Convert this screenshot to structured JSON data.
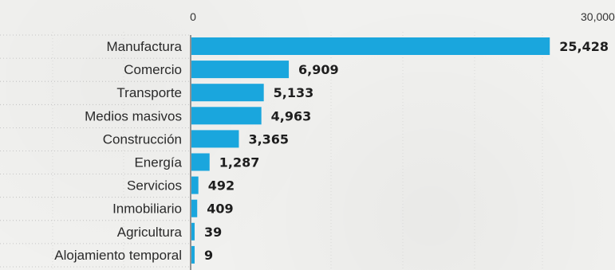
{
  "chart_data": {
    "type": "bar",
    "orientation": "horizontal",
    "title": "",
    "xlabel": "",
    "ylabel": "",
    "xlim": [
      0,
      30000
    ],
    "x_ticks": [
      {
        "value": 0,
        "label": "0"
      },
      {
        "value": 30000,
        "label": "30,000"
      }
    ],
    "categories": [
      "Manufactura",
      "Comercio",
      "Transporte",
      "Medios masivos",
      "Construcción",
      "Energía",
      "Servicios",
      "Inmobiliario",
      "Agricultura",
      "Alojamiento temporal"
    ],
    "values": [
      25428,
      6909,
      5133,
      4963,
      3365,
      1287,
      492,
      409,
      39,
      9
    ],
    "value_labels": [
      "25,428",
      "6,909",
      "5,133",
      "4,963",
      "3,365",
      "1,287",
      "492",
      "409",
      "39",
      "9"
    ],
    "bar_color": "#1aa6dd",
    "grid": true,
    "legend": false
  }
}
